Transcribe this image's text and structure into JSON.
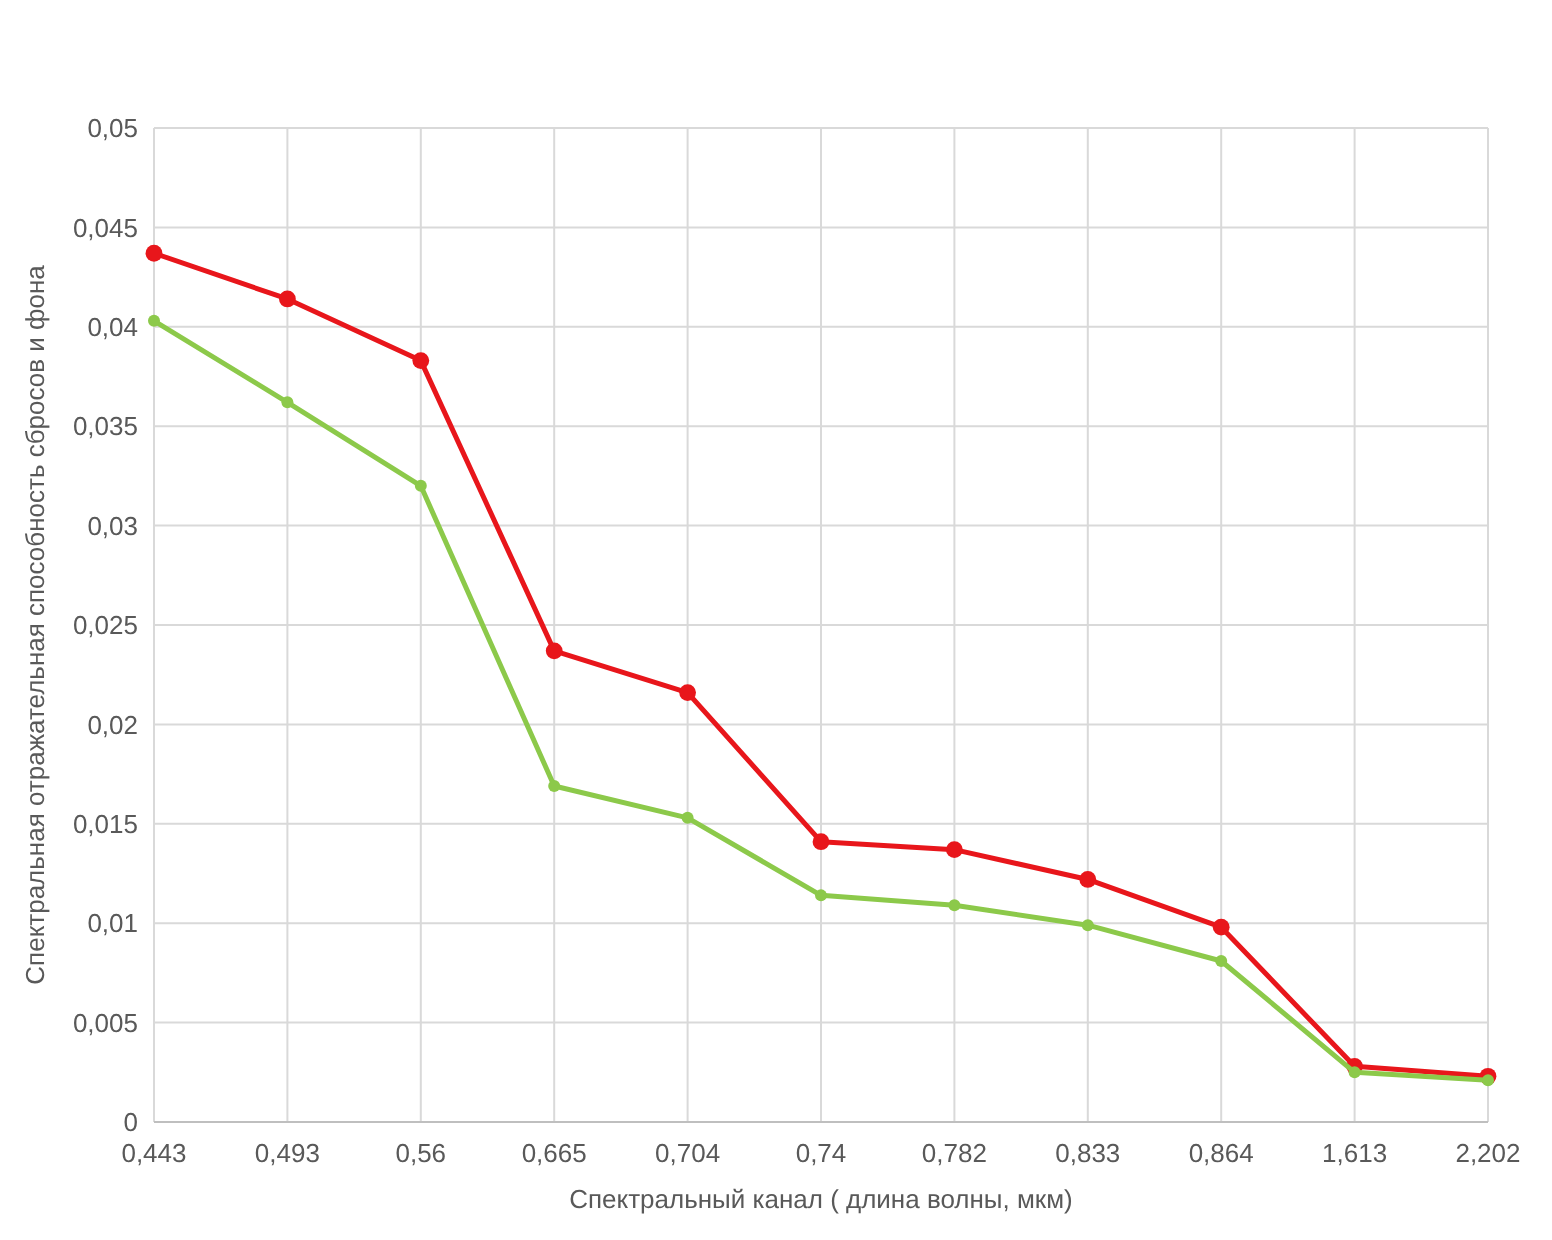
{
  "chart_data": {
    "type": "line",
    "xlabel": "Спектральный канал ( длина волны, мкм)",
    "ylabel": "Спектральная отражательная способность сбросов и фона",
    "categories": [
      "0,443",
      "0,493",
      "0,56",
      "0,665",
      "0,704",
      "0,74",
      "0,782",
      "0,833",
      "0,864",
      "1,613",
      "2,202"
    ],
    "series": [
      {
        "color": "#e8161b",
        "values": [
          0.0437,
          0.0414,
          0.0383,
          0.0237,
          0.0216,
          0.0141,
          0.0137,
          0.0122,
          0.0098,
          0.0028,
          0.0023
        ]
      },
      {
        "color": "#8cc94a",
        "values": [
          0.0403,
          0.0362,
          0.032,
          0.0169,
          0.0153,
          0.0114,
          0.0109,
          0.0099,
          0.0081,
          0.0025,
          0.0021
        ]
      }
    ],
    "ylim": [
      0,
      0.05
    ],
    "yticks": [
      {
        "value": 0,
        "label": "0"
      },
      {
        "value": 0.005,
        "label": "0,005"
      },
      {
        "value": 0.01,
        "label": "0,01"
      },
      {
        "value": 0.015,
        "label": "0,015"
      },
      {
        "value": 0.02,
        "label": "0,02"
      },
      {
        "value": 0.025,
        "label": "0,025"
      },
      {
        "value": 0.03,
        "label": "0,03"
      },
      {
        "value": 0.035,
        "label": "0,035"
      },
      {
        "value": 0.04,
        "label": "0,04"
      },
      {
        "value": 0.045,
        "label": "0,045"
      },
      {
        "value": 0.05,
        "label": "0,05"
      }
    ],
    "grid": true,
    "marker": "circle",
    "line_style": "solid"
  }
}
